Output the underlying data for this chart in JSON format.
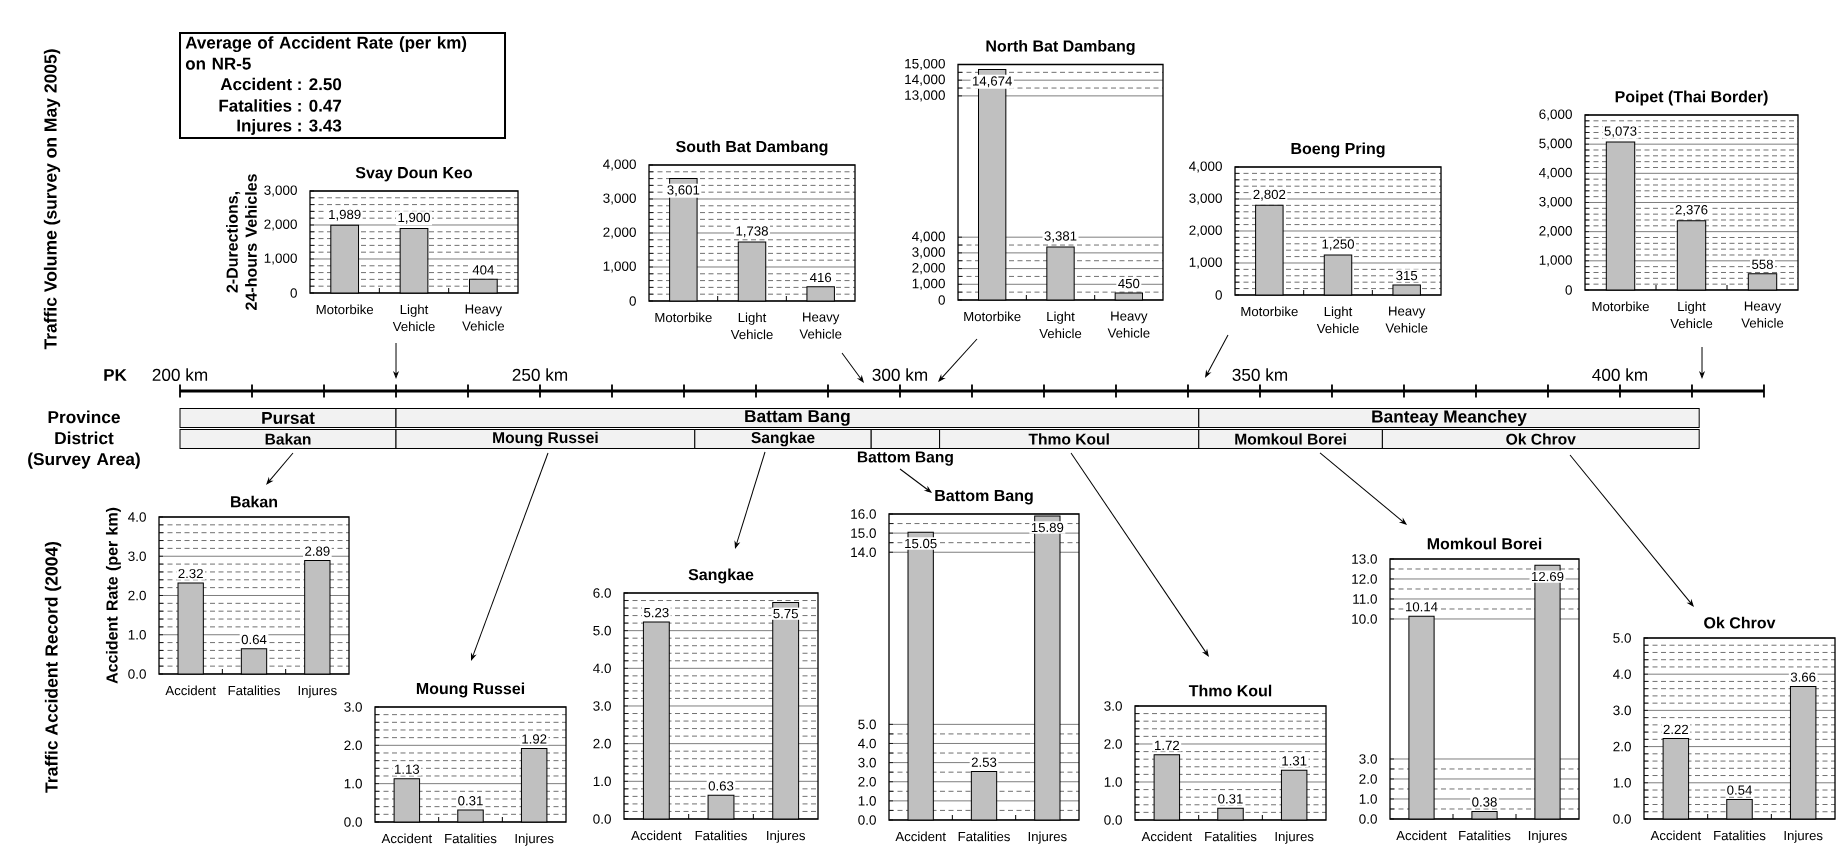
{
  "chart_data": [
    {
      "type": "other",
      "title": "Average of Accident Rate (per km) on NR-5",
      "annotations": [
        "Accident : 2.50",
        "Fatalities : 0.47",
        "Injures : 3.43"
      ]
    },
    {
      "type": "bar",
      "title": "Svay Doun Keo",
      "ylabel": "2-Durections, 24-hours Vehicles",
      "annotations": [
        "Traffic Volume (survey on May 2005)"
      ],
      "categories": [
        "Motorbike",
        "Light Vehicle",
        "Heavy Vehicle"
      ],
      "values": [
        1989,
        1900,
        404
      ],
      "value_labels": [
        "1,989",
        "1,900",
        "404"
      ],
      "color": "#c0c0c0",
      "ylim": [
        0,
        3000
      ],
      "yticks": [
        0,
        {
          "value": 1000,
          "label": "1,000"
        },
        {
          "value": 2000,
          "label": "2,000"
        },
        {
          "value": 3000,
          "label": "3,000"
        }
      ],
      "grid": "y"
    },
    {
      "type": "bar",
      "title": "South Bat Dambang",
      "categories": [
        "Motorbike",
        "Light Vehicle",
        "Heavy Vehicle"
      ],
      "values": [
        3601,
        1738,
        416
      ],
      "value_labels": [
        "3,601",
        "1,738",
        "416"
      ],
      "color": "#c0c0c0",
      "ylim": [
        0,
        4000
      ],
      "yticks": [
        0,
        {
          "value": 1000,
          "label": "1,000"
        },
        {
          "value": 2000,
          "label": "2,000"
        },
        {
          "value": 3000,
          "label": "3,000"
        },
        {
          "value": 4000,
          "label": "4,000"
        }
      ],
      "grid": "y"
    },
    {
      "type": "bar",
      "title": "North Bat Dambang",
      "categories": [
        "Motorbike",
        "Light Vehicle",
        "Heavy Vehicle"
      ],
      "values": [
        14674,
        3381,
        450
      ],
      "value_labels": [
        "14,674",
        "3,381",
        "450"
      ],
      "color": "#c0c0c0",
      "ylim": [
        0,
        15000
      ],
      "yticks": [
        0,
        {
          "value": 1000,
          "label": "1,000"
        },
        {
          "value": 2000,
          "label": "2,000"
        },
        {
          "value": 3000,
          "label": "3,000"
        },
        {
          "value": 4000,
          "label": "4,000"
        },
        {
          "value": 13000,
          "label": "13,000"
        },
        {
          "value": 14000,
          "label": "14,000"
        },
        {
          "value": 15000,
          "label": "15,000"
        }
      ],
      "grid": "y"
    },
    {
      "type": "bar",
      "title": "Boeng Pring",
      "categories": [
        "Motorbike",
        "Light Vehicle",
        "Heavy Vehicle"
      ],
      "values": [
        2802,
        1250,
        315
      ],
      "value_labels": [
        "2,802",
        "1,250",
        "315"
      ],
      "color": "#c0c0c0",
      "ylim": [
        0,
        4000
      ],
      "yticks": [
        0,
        {
          "value": 1000,
          "label": "1,000"
        },
        {
          "value": 2000,
          "label": "2,000"
        },
        {
          "value": 3000,
          "label": "3,000"
        },
        {
          "value": 4000,
          "label": "4,000"
        }
      ],
      "grid": "y"
    },
    {
      "type": "bar",
      "title": "Poipet (Thai Border)",
      "categories": [
        "Motorbike",
        "Light Vehicle",
        "Heavy Vehicle"
      ],
      "values": [
        5073,
        2376,
        558
      ],
      "value_labels": [
        "5,073",
        "2,376",
        "558"
      ],
      "color": "#c0c0c0",
      "ylim": [
        0,
        6000
      ],
      "yticks": [
        0,
        {
          "value": 1000,
          "label": "1,000"
        },
        {
          "value": 2000,
          "label": "2,000"
        },
        {
          "value": 3000,
          "label": "3,000"
        },
        {
          "value": 4000,
          "label": "4,000"
        },
        {
          "value": 5000,
          "label": "5,000"
        },
        {
          "value": 6000,
          "label": "6,000"
        }
      ],
      "grid": "y"
    },
    {
      "type": "bar",
      "orientation": "horizontal",
      "xlabel": "PK",
      "categories": [
        "Province",
        "District (Survey Area)"
      ],
      "xlim": [
        200,
        420
      ],
      "xticks": [
        {
          "value": 200,
          "label": "200 km"
        },
        {
          "value": 210,
          "label": null
        },
        {
          "value": 220,
          "label": null
        },
        {
          "value": 230,
          "label": null
        },
        {
          "value": 240,
          "label": null
        },
        {
          "value": 250,
          "label": "250 km"
        },
        {
          "value": 260,
          "label": null
        },
        {
          "value": 270,
          "label": null
        },
        {
          "value": 280,
          "label": null
        },
        {
          "value": 290,
          "label": null
        },
        {
          "value": 300,
          "label": "300 km"
        },
        {
          "value": 310,
          "label": null
        },
        {
          "value": 320,
          "label": null
        },
        {
          "value": 330,
          "label": null
        },
        {
          "value": 340,
          "label": null
        },
        {
          "value": 350,
          "label": "350 km"
        },
        {
          "value": 360,
          "label": null
        },
        {
          "value": 370,
          "label": null
        },
        {
          "value": 380,
          "label": null
        },
        {
          "value": 390,
          "label": null
        },
        {
          "value": 400,
          "label": "400 km"
        },
        {
          "value": 410,
          "label": null
        },
        {
          "value": 420,
          "label": null
        }
      ],
      "series": [
        {
          "name": "Pursat",
          "color": "#f2f2f2",
          "values": [
            30,
            null
          ],
          "base": [
            200,
            null
          ]
        },
        {
          "name": "Battam Bang",
          "color": "#f2f2f2",
          "values": [
            111.5,
            null
          ],
          "base": [
            230,
            null
          ]
        },
        {
          "name": "Banteay Meanchey",
          "color": "#f2f2f2",
          "values": [
            69.5,
            null
          ],
          "base": [
            341.5,
            null
          ]
        },
        {
          "name": "Bakan",
          "color": "#f2f2f2",
          "values": [
            null,
            30
          ],
          "base": [
            null,
            200
          ]
        },
        {
          "name": "Moung Russei",
          "color": "#f2f2f2",
          "values": [
            null,
            41.5
          ],
          "base": [
            null,
            230
          ]
        },
        {
          "name": "Sangkae",
          "color": "#f2f2f2",
          "values": [
            null,
            24.5
          ],
          "base": [
            null,
            271.5
          ]
        },
        {
          "name": "Battom Bang",
          "color": "#f2f2f2",
          "values": [
            null,
            9.5
          ],
          "base": [
            null,
            296
          ]
        },
        {
          "name": "Thmo Koul",
          "color": "#f2f2f2",
          "values": [
            null,
            36
          ],
          "base": [
            null,
            305.5
          ]
        },
        {
          "name": "Momkoul Borei",
          "color": "#f2f2f2",
          "values": [
            null,
            25.5
          ],
          "base": [
            null,
            341.5
          ]
        },
        {
          "name": "Ok Chrov",
          "color": "#f2f2f2",
          "values": [
            null,
            44
          ],
          "base": [
            null,
            367
          ]
        }
      ]
    },
    {
      "type": "bar",
      "title": "Bakan",
      "ylabel": "Accident Rate (per km)",
      "annotations": [
        "Traffic Accident Record (2004)"
      ],
      "categories": [
        "Accident",
        "Fatalities",
        "Injures"
      ],
      "values": [
        2.32,
        0.64,
        2.89
      ],
      "value_labels": [
        "2.32",
        "0.64",
        "2.89"
      ],
      "color": "#c0c0c0",
      "ylim": [
        0,
        4
      ],
      "yticks": [
        {
          "value": 0,
          "label": "0.0"
        },
        {
          "value": 1,
          "label": "1.0"
        },
        {
          "value": 2,
          "label": "2.0"
        },
        {
          "value": 3,
          "label": "3.0"
        },
        {
          "value": 4,
          "label": "4.0"
        }
      ],
      "grid": "y"
    },
    {
      "type": "bar",
      "title": "Moung Russei",
      "categories": [
        "Accident",
        "Fatalities",
        "Injures"
      ],
      "values": [
        1.13,
        0.31,
        1.92
      ],
      "value_labels": [
        "1.13",
        "0.31",
        "1.92"
      ],
      "color": "#c0c0c0",
      "ylim": [
        0,
        3
      ],
      "yticks": [
        {
          "value": 0,
          "label": "0.0"
        },
        {
          "value": 1,
          "label": "1.0"
        },
        {
          "value": 2,
          "label": "2.0"
        },
        {
          "value": 3,
          "label": "3.0"
        }
      ],
      "grid": "y"
    },
    {
      "type": "bar",
      "title": "Sangkae",
      "categories": [
        "Accident",
        "Fatalities",
        "Injures"
      ],
      "values": [
        5.23,
        0.63,
        5.75
      ],
      "value_labels": [
        "5.23",
        "0.63",
        "5.75"
      ],
      "color": "#c0c0c0",
      "ylim": [
        0,
        6
      ],
      "yticks": [
        {
          "value": 0,
          "label": "0.0"
        },
        {
          "value": 1,
          "label": "1.0"
        },
        {
          "value": 2,
          "label": "2.0"
        },
        {
          "value": 3,
          "label": "3.0"
        },
        {
          "value": 4,
          "label": "4.0"
        },
        {
          "value": 5,
          "label": "5.0"
        },
        {
          "value": 6,
          "label": "6.0"
        }
      ],
      "grid": "y"
    },
    {
      "type": "bar",
      "title": "Battom Bang",
      "categories": [
        "Accident",
        "Fatalities",
        "Injures"
      ],
      "values": [
        15.05,
        2.53,
        15.89
      ],
      "value_labels": [
        "15.05",
        "2.53",
        "15.89"
      ],
      "color": "#c0c0c0",
      "ylim": [
        0,
        16
      ],
      "yticks": [
        {
          "value": 0,
          "label": "0.0"
        },
        {
          "value": 1,
          "label": "1.0"
        },
        {
          "value": 2,
          "label": "2.0"
        },
        {
          "value": 3,
          "label": "3.0"
        },
        {
          "value": 4,
          "label": "4.0"
        },
        {
          "value": 5,
          "label": "5.0"
        },
        {
          "value": 14,
          "label": "14.0"
        },
        {
          "value": 15,
          "label": "15.0"
        },
        {
          "value": 16,
          "label": "16.0"
        }
      ],
      "grid": "y"
    },
    {
      "type": "bar",
      "title": "Thmo Koul",
      "categories": [
        "Accident",
        "Fatalities",
        "Injures"
      ],
      "values": [
        1.72,
        0.31,
        1.31
      ],
      "value_labels": [
        "1.72",
        "0.31",
        "1.31"
      ],
      "color": "#c0c0c0",
      "ylim": [
        0,
        3
      ],
      "yticks": [
        {
          "value": 0,
          "label": "0.0"
        },
        {
          "value": 1,
          "label": "1.0"
        },
        {
          "value": 2,
          "label": "2.0"
        },
        {
          "value": 3,
          "label": "3.0"
        }
      ],
      "grid": "y"
    },
    {
      "type": "bar",
      "title": "Momkoul Borei",
      "categories": [
        "Accident",
        "Fatalities",
        "Injures"
      ],
      "values": [
        10.14,
        0.38,
        12.69
      ],
      "value_labels": [
        "10.14",
        "0.38",
        "12.69"
      ],
      "color": "#c0c0c0",
      "ylim": [
        0,
        13
      ],
      "yticks": [
        {
          "value": 0,
          "label": "0.0"
        },
        {
          "value": 1,
          "label": "1.0"
        },
        {
          "value": 2,
          "label": "2.0"
        },
        {
          "value": 3,
          "label": "3.0"
        },
        {
          "value": 10,
          "label": "10.0"
        },
        {
          "value": 11,
          "label": "11.0"
        },
        {
          "value": 12,
          "label": "12.0"
        },
        {
          "value": 13,
          "label": "13.0"
        }
      ],
      "grid": "y"
    },
    {
      "type": "bar",
      "title": "Ok Chrov",
      "categories": [
        "Accident",
        "Fatalities",
        "Injures"
      ],
      "values": [
        2.22,
        0.54,
        3.66
      ],
      "value_labels": [
        "2.22",
        "0.54",
        "3.66"
      ],
      "color": "#c0c0c0",
      "ylim": [
        0,
        5
      ],
      "yticks": [
        {
          "value": 0,
          "label": "0.0"
        },
        {
          "value": 1,
          "label": "1.0"
        },
        {
          "value": 2,
          "label": "2.0"
        },
        {
          "value": 3,
          "label": "3.0"
        },
        {
          "value": 4,
          "label": "4.0"
        },
        {
          "value": 5,
          "label": "5.0"
        }
      ],
      "grid": "y"
    }
  ]
}
